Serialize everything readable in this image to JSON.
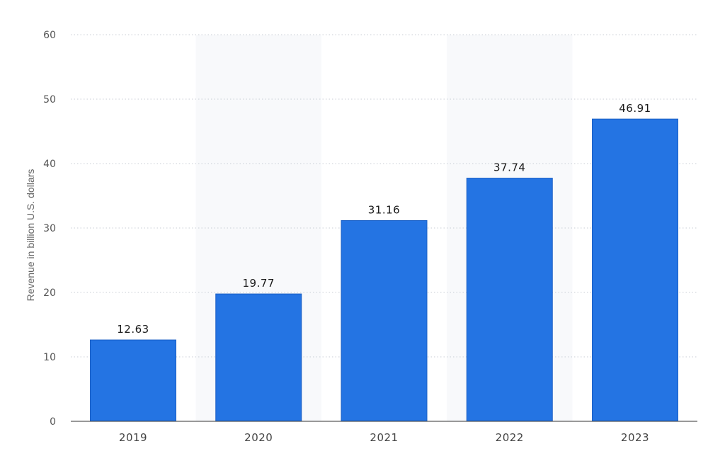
{
  "chart_data": {
    "type": "bar",
    "categories": [
      "2019",
      "2020",
      "2021",
      "2022",
      "2023"
    ],
    "values": [
      12.63,
      19.77,
      31.16,
      37.74,
      46.91
    ],
    "value_labels": [
      "12.63",
      "19.77",
      "31.16",
      "37.74",
      "46.91"
    ],
    "title": "",
    "xlabel": "",
    "ylabel": "Revenue in billion U.S. dollars",
    "ylim": [
      0,
      60
    ],
    "yticks": [
      0,
      10,
      20,
      30,
      40,
      50,
      60
    ],
    "grid": true,
    "legend": "none",
    "colors": {
      "bar": "#2474e3",
      "bar_edge": "#1a5fc4",
      "alt_band": "#f8f9fb"
    }
  }
}
